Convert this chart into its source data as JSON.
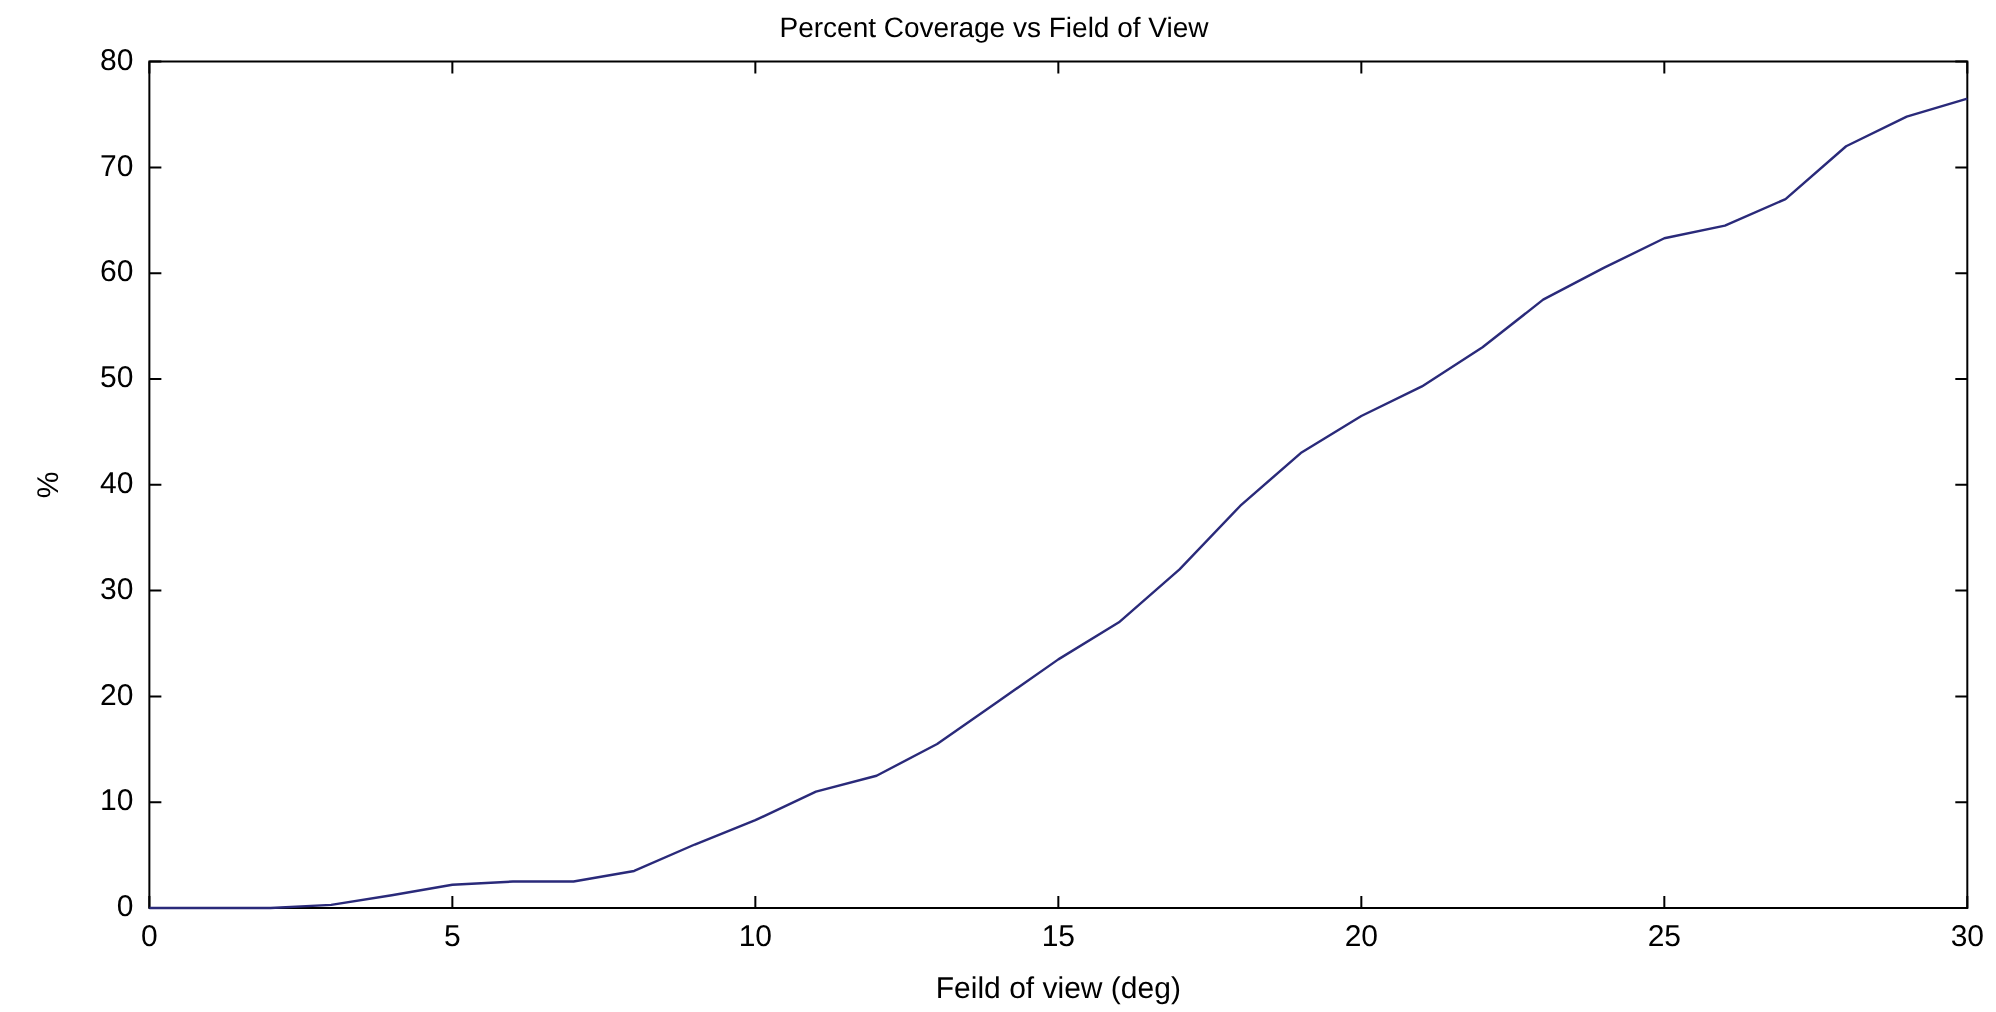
{
  "chart_data": {
    "type": "line",
    "title": "Percent Coverage vs Field of View",
    "xlabel": "Feild of view (deg)",
    "ylabel": "%",
    "x": [
      0,
      1,
      2,
      3,
      4,
      5,
      6,
      7,
      8,
      9,
      10,
      11,
      12,
      13,
      14,
      15,
      16,
      17,
      18,
      19,
      20,
      21,
      22,
      23,
      24,
      25,
      26,
      27,
      28,
      29,
      30
    ],
    "series": [
      {
        "color": "#2a2a7a",
        "values": [
          0,
          0,
          0,
          0.3,
          1.2,
          2.2,
          2.5,
          2.5,
          3.5,
          6,
          8.3,
          11,
          12.5,
          15.5,
          19.5,
          23.5,
          27,
          32,
          38,
          43,
          46.5,
          49.3,
          53,
          57.5,
          60.5,
          63.3,
          64.5,
          67,
          72,
          74.8,
          76.5
        ]
      }
    ],
    "xlim": [
      0,
      30
    ],
    "xticks": [
      0,
      5,
      10,
      15,
      20,
      25,
      30
    ],
    "ylim": [
      0,
      80
    ],
    "yticks": [
      0,
      10,
      20,
      30,
      40,
      50,
      60,
      70,
      80
    ],
    "grid": false,
    "legend": false,
    "marker": "none",
    "line_style": "solid"
  }
}
